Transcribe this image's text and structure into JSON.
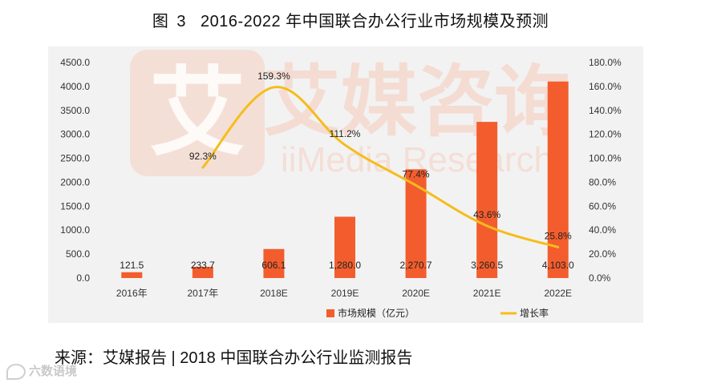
{
  "figure": {
    "label": "图",
    "number": "3",
    "title": "2016-2022 年中国联合办公行业市场规模及预测"
  },
  "source": "来源：艾媒报告 | 2018 中国联合办公行业监测报告",
  "watermark": {
    "brand_cn": "艾媒咨询",
    "brand_en": "iiMedia Research",
    "corner": "六数语境"
  },
  "colors": {
    "bar": "#f35d2d",
    "line": "#f5bd1b",
    "panel": "#f2f2f2",
    "watermark": "#f6cfc0"
  },
  "chart_data": {
    "type": "bar",
    "categories": [
      "2016年",
      "2017年",
      "2018E",
      "2019E",
      "2020E",
      "2021E",
      "2022E"
    ],
    "series": [
      {
        "name": "市场规模（亿元）",
        "type": "bar",
        "axis": "left",
        "values": [
          121.5,
          233.7,
          606.1,
          1280.0,
          2270.7,
          3260.5,
          4103.0
        ],
        "labels": [
          "121.5",
          "233.7",
          "606.1",
          "1,280.0",
          "2,270.7",
          "3,260.5",
          "4,103.0"
        ]
      },
      {
        "name": "增长率",
        "type": "line",
        "axis": "right",
        "values": [
          null,
          92.3,
          159.3,
          111.2,
          77.4,
          43.6,
          25.8
        ],
        "labels": [
          "",
          "92.3%",
          "159.3%",
          "111.2%",
          "77.4%",
          "43.6%",
          "25.8%"
        ]
      }
    ],
    "y_left": {
      "range": [
        0,
        4500
      ],
      "ticks": [
        "0.0",
        "500.0",
        "1000.0",
        "1500.0",
        "2000.0",
        "2500.0",
        "3000.0",
        "3500.0",
        "4000.0",
        "4500.0"
      ]
    },
    "y_right": {
      "range": [
        0,
        180
      ],
      "ticks": [
        "0.0%",
        "20.0%",
        "40.0%",
        "60.0%",
        "80.0%",
        "100.0%",
        "120.0%",
        "140.0%",
        "160.0%",
        "180.0%"
      ]
    },
    "grid": false,
    "legend": "bottom"
  }
}
